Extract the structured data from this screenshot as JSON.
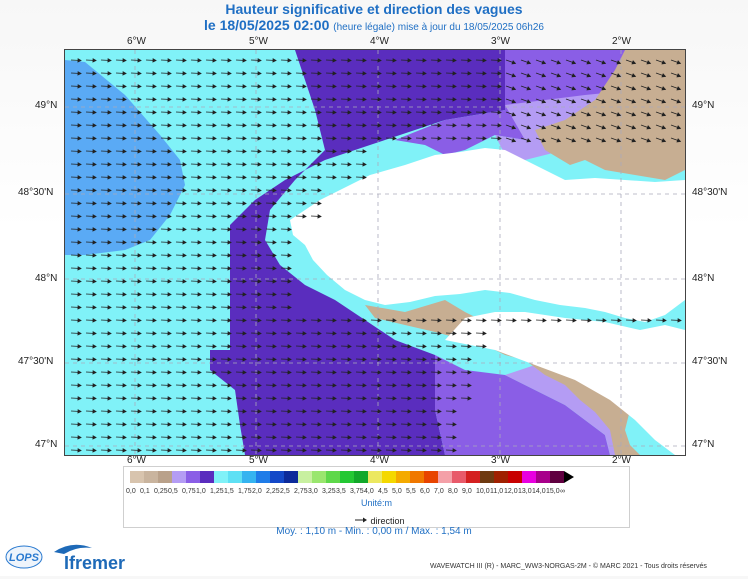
{
  "header": {
    "title": "Hauteur significative et direction des vagues",
    "date_line": "le 18/05/2025 02:00",
    "update_note": "(heure légale) mise à jour du 18/05/2025 06h26"
  },
  "map": {
    "lon_labels": [
      "6°W",
      "5°W",
      "4°W",
      "3°W",
      "2°W"
    ],
    "lat_labels": [
      "49°N",
      "48°30'N",
      "48°N",
      "47°30'N",
      "47°N"
    ],
    "colors": {
      "sea_light": "#80f2f8",
      "sea_blue": "#5aaaf5",
      "wave_dark": "#5a2dbe",
      "wave_mid": "#8a5ee6",
      "wave_light": "#b49cf4",
      "wave_pale": "#cbbaf8",
      "land_tan": "#c7ae92",
      "land_white": "#ffffff"
    }
  },
  "legend": {
    "labels": [
      "0,0",
      "0,1",
      "0,25",
      "0,5",
      "0,75",
      "1,0",
      "1,25",
      "1,5",
      "1,75",
      "2,0",
      "2,25",
      "2,5",
      "2,75",
      "3,0",
      "3,25",
      "3,5",
      "3,75",
      "4,0",
      "4,5",
      "5,0",
      "5,5",
      "6,0",
      "7,0",
      "8,0",
      "9,0",
      "10,0",
      "11,0",
      "12,0",
      "13,0",
      "14,0",
      "15,0",
      "∞"
    ],
    "colors": [
      "#d8c4ae",
      "#c9b49e",
      "#b9a18a",
      "#b49cf4",
      "#8a5ee6",
      "#5a2dbe",
      "#80f2f8",
      "#5ee0f4",
      "#35b4f0",
      "#1f7ce8",
      "#1348c8",
      "#0c2a9a",
      "#c8f0a0",
      "#9ae66e",
      "#5ed84a",
      "#24c834",
      "#12a82a",
      "#ece860",
      "#f4d800",
      "#f4aa00",
      "#f07800",
      "#e84400",
      "#f4a0a8",
      "#e85a6a",
      "#d42020",
      "#6e3a10",
      "#a02000",
      "#c80000",
      "#e800e0",
      "#a8008a",
      "#600040"
    ],
    "unit": "Unité:m",
    "direction_label": "direction"
  },
  "stats": "Moy. : 1,10 m   -   Min. : 0,00 m / Max. : 1,54 m",
  "footer": "WAVEWATCH III (R) - MARC_WW3-NORGAS-2M - © MARC 2021 - Tous droits réservés",
  "logos": {
    "lops": "LOPS",
    "ifremer": "Ifremer"
  }
}
